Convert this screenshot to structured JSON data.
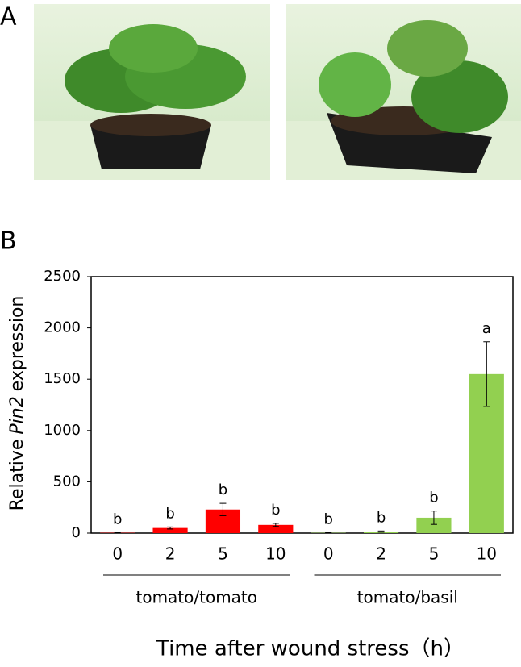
{
  "panels": {
    "a": "A",
    "b": "B"
  },
  "chart_data": {
    "type": "bar",
    "y_label": [
      "Relative",
      "Pin2",
      "expression"
    ],
    "x_label": "Time after wound stress（h）",
    "ylim": [
      0,
      2500
    ],
    "yticks": [
      0,
      500,
      1000,
      1500,
      2000,
      2500
    ],
    "series": [
      {
        "name": "tomato/tomato",
        "color": "#ff0000",
        "categories": [
          "0",
          "2",
          "5",
          "10"
        ],
        "values": [
          3,
          50,
          230,
          80
        ],
        "errors": [
          2,
          10,
          60,
          15
        ],
        "letters": [
          "b",
          "b",
          "b",
          "b"
        ]
      },
      {
        "name": "tomato/basil",
        "color": "#92d050",
        "categories": [
          "0",
          "2",
          "5",
          "10"
        ],
        "values": [
          3,
          15,
          150,
          1550
        ],
        "errors": [
          2,
          6,
          65,
          315
        ],
        "letters": [
          "b",
          "b",
          "b",
          "a"
        ]
      }
    ]
  }
}
